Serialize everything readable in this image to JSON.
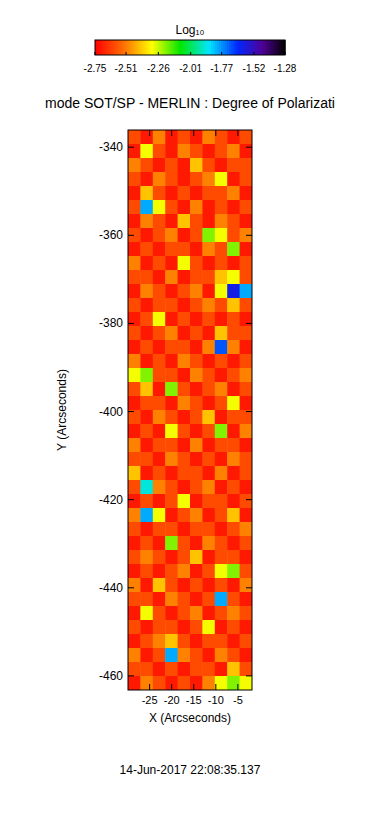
{
  "chart_data": {
    "type": "heatmap",
    "title": "mode SOT/SP - MERLIN : Degree of Polarizati",
    "x_label": "X (Arcseconds)",
    "y_label": "Y (Arcseconds)",
    "annotation": "14-Jun-2017 22:08:35.137",
    "xlim": [
      -29.9,
      -1.8
    ],
    "xticks": [
      -25,
      -20,
      -15,
      -10,
      -5
    ],
    "ylim": [
      -463.2,
      -336.1
    ],
    "yticks": [
      -460,
      -440,
      -420,
      -400,
      -380,
      -360,
      -340
    ],
    "colorbar": {
      "label": "Log₁₀",
      "range": [
        -2.75,
        -1.28
      ],
      "ticks": [
        -2.75,
        -2.51,
        -2.26,
        -2.01,
        -1.77,
        -1.52,
        -1.28
      ]
    },
    "cells": [
      [
        -2.6,
        -2.7,
        -2.5,
        -2.7,
        -2.6,
        -2.7,
        -2.5,
        -2.6,
        -2.7,
        -2.6
      ],
      [
        -2.7,
        -2.3,
        -2.6,
        -2.7,
        -2.5,
        -2.6,
        -2.7,
        -2.6,
        -2.5,
        -2.7
      ],
      [
        -2.5,
        -2.6,
        -2.7,
        -2.6,
        -2.7,
        -2.4,
        -2.6,
        -2.7,
        -2.6,
        -2.6
      ],
      [
        -2.6,
        -2.7,
        -2.5,
        -2.6,
        -2.7,
        -2.6,
        -2.5,
        -2.3,
        -2.7,
        -2.6
      ],
      [
        -2.7,
        -2.4,
        -2.6,
        -2.7,
        -2.6,
        -2.7,
        -2.6,
        -2.6,
        -2.5,
        -2.7
      ],
      [
        -2.6,
        -1.8,
        -2.3,
        -2.6,
        -2.7,
        -2.5,
        -2.7,
        -2.6,
        -2.7,
        -2.6
      ],
      [
        -2.7,
        -2.5,
        -2.6,
        -2.7,
        -2.4,
        -2.6,
        -2.7,
        -2.5,
        -2.6,
        -2.7
      ],
      [
        -2.6,
        -2.7,
        -2.6,
        -2.5,
        -2.7,
        -2.6,
        -2.2,
        -2.3,
        -2.6,
        -2.5
      ],
      [
        -2.7,
        -2.6,
        -2.7,
        -2.6,
        -2.6,
        -2.7,
        -2.5,
        -2.6,
        -2.2,
        -2.7
      ],
      [
        -2.5,
        -2.7,
        -2.6,
        -2.7,
        -2.3,
        -2.6,
        -2.7,
        -2.6,
        -2.7,
        -2.6
      ],
      [
        -2.6,
        -2.6,
        -2.7,
        -2.5,
        -2.7,
        -2.6,
        -2.6,
        -2.4,
        -2.3,
        -2.6
      ],
      [
        -2.7,
        -2.5,
        -2.6,
        -2.7,
        -2.6,
        -2.5,
        -2.7,
        -2.3,
        -1.6,
        -1.8
      ],
      [
        -2.6,
        -2.7,
        -2.6,
        -2.6,
        -2.7,
        -2.6,
        -2.5,
        -2.6,
        -2.4,
        -2.6
      ],
      [
        -2.7,
        -2.6,
        -2.3,
        -2.7,
        -2.6,
        -2.7,
        -2.6,
        -2.7,
        -2.6,
        -2.7
      ],
      [
        -2.6,
        -2.7,
        -2.6,
        -2.5,
        -2.7,
        -2.6,
        -2.7,
        -2.4,
        -2.6,
        -2.6
      ],
      [
        -2.7,
        -2.6,
        -2.7,
        -2.6,
        -2.6,
        -2.7,
        -2.5,
        -1.7,
        -2.5,
        -2.7
      ],
      [
        -2.5,
        -2.7,
        -2.6,
        -2.7,
        -2.5,
        -2.6,
        -2.7,
        -2.6,
        -2.7,
        -2.6
      ],
      [
        -2.3,
        -2.2,
        -2.6,
        -2.6,
        -2.7,
        -2.5,
        -2.6,
        -2.7,
        -2.6,
        -2.5
      ],
      [
        -2.6,
        -2.4,
        -2.7,
        -2.2,
        -2.6,
        -2.7,
        -2.6,
        -2.5,
        -2.7,
        -2.6
      ],
      [
        -2.7,
        -2.6,
        -2.6,
        -2.7,
        -2.5,
        -2.6,
        -2.7,
        -2.6,
        -2.3,
        -2.7
      ],
      [
        -2.6,
        -2.7,
        -2.5,
        -2.6,
        -2.7,
        -2.6,
        -2.4,
        -2.7,
        -2.6,
        -2.6
      ],
      [
        -2.7,
        -2.6,
        -2.7,
        -2.3,
        -2.6,
        -2.7,
        -2.6,
        -2.2,
        -2.7,
        -2.5
      ],
      [
        -2.5,
        -2.7,
        -2.6,
        -2.6,
        -2.7,
        -2.5,
        -2.7,
        -2.6,
        -2.6,
        -2.7
      ],
      [
        -2.6,
        -2.6,
        -2.7,
        -2.5,
        -2.6,
        -2.7,
        -2.6,
        -2.7,
        -2.5,
        -2.6
      ],
      [
        -2.4,
        -2.7,
        -2.6,
        -2.7,
        -2.6,
        -2.6,
        -2.7,
        -2.5,
        -2.7,
        -2.6
      ],
      [
        -2.6,
        -1.9,
        -2.5,
        -2.6,
        -2.7,
        -2.6,
        -2.5,
        -2.7,
        -2.6,
        -2.7
      ],
      [
        -2.7,
        -2.6,
        -2.7,
        -2.6,
        -2.3,
        -2.7,
        -2.6,
        -2.6,
        -2.7,
        -2.6
      ],
      [
        -2.5,
        -1.8,
        -2.3,
        -2.7,
        -2.6,
        -2.5,
        -2.7,
        -2.6,
        -2.4,
        -2.7
      ],
      [
        -2.6,
        -2.7,
        -2.6,
        -2.6,
        -2.7,
        -2.6,
        -2.6,
        -2.7,
        -2.6,
        -2.5
      ],
      [
        -2.7,
        -2.6,
        -2.7,
        -2.2,
        -2.6,
        -2.7,
        -2.5,
        -2.6,
        -2.7,
        -2.6
      ],
      [
        -2.6,
        -2.5,
        -2.6,
        -2.7,
        -2.6,
        -2.4,
        -2.7,
        -2.6,
        -2.6,
        -2.7
      ],
      [
        -2.7,
        -2.6,
        -2.7,
        -2.6,
        -2.5,
        -2.7,
        -2.6,
        -2.3,
        -2.2,
        -2.6
      ],
      [
        -2.5,
        -2.7,
        -2.4,
        -2.6,
        -2.7,
        -2.6,
        -2.7,
        -2.6,
        -2.7,
        -2.5
      ],
      [
        -2.6,
        -2.6,
        -2.7,
        -2.5,
        -2.6,
        -2.7,
        -2.6,
        -1.8,
        -2.6,
        -2.7
      ],
      [
        -2.7,
        -2.3,
        -2.6,
        -2.7,
        -2.6,
        -2.5,
        -2.7,
        -2.6,
        -2.5,
        -2.6
      ],
      [
        -2.6,
        -2.7,
        -2.6,
        -2.6,
        -2.7,
        -2.6,
        -2.3,
        -2.7,
        -2.6,
        -2.7
      ],
      [
        -2.7,
        -2.6,
        -2.5,
        -2.4,
        -2.6,
        -2.7,
        -2.6,
        -2.6,
        -2.7,
        -2.6
      ],
      [
        -2.5,
        -2.7,
        -2.6,
        -1.8,
        -2.5,
        -2.6,
        -2.7,
        -2.5,
        -2.6,
        -2.7
      ],
      [
        -2.6,
        -2.6,
        -2.7,
        -2.6,
        -2.7,
        -2.6,
        -2.6,
        -2.7,
        -2.4,
        -2.6
      ],
      [
        -2.7,
        -2.5,
        -2.6,
        -2.7,
        -2.6,
        -2.7,
        -2.5,
        -2.3,
        -2.2,
        -2.3
      ]
    ]
  }
}
